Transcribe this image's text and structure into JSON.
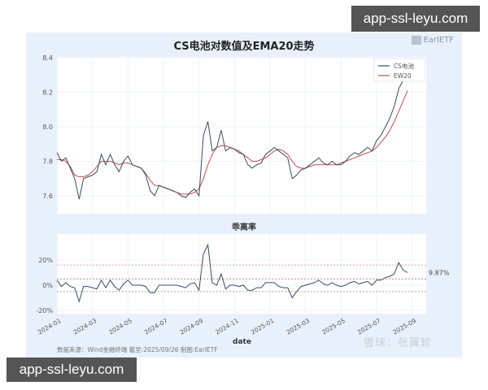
{
  "banners": {
    "top": "app-ssl-leyu.com",
    "bottom": "app-ssl-leyu.com"
  },
  "panel": {
    "logo": "EarlETF",
    "source": "数据来源：Wind金融终端 截至:2025/09/26 制图:EarlETF",
    "watermark": "雪球：张翼轸",
    "xlabel": "date",
    "last_deviation_label": "9.87%"
  },
  "colors": {
    "price": "#3b4a63",
    "ema": "#c0504d",
    "band_upper": "#c9a0a0",
    "band_mid": "#d98080",
    "band_lower": "#9fb39f",
    "panel_bg": "#e8f1fb",
    "plot_bg": "#ffffff",
    "grid": "#eef1f5"
  },
  "chart_data": [
    {
      "type": "line",
      "title": "CS电池对数值及EMA20走势",
      "xlabel": "",
      "ylabel": "",
      "ylim": [
        7.5,
        8.42
      ],
      "yticks": [
        7.6,
        7.8,
        8.0,
        8.2,
        8.4
      ],
      "xticks": [
        "2024-01",
        "2024-03",
        "2024-05",
        "2024-07",
        "2024-09",
        "2024-11",
        "2025-01",
        "2025-03",
        "2025-05",
        "2025-07",
        "2025-09"
      ],
      "grid": true,
      "legend_position": "upper right",
      "x": [
        0,
        0.25,
        0.5,
        0.75,
        1,
        1.25,
        1.5,
        1.75,
        2,
        2.25,
        2.5,
        2.75,
        3,
        3.25,
        3.5,
        3.75,
        4,
        4.25,
        4.5,
        4.75,
        5,
        5.25,
        5.5,
        5.75,
        6,
        6.25,
        6.5,
        6.75,
        7,
        7.25,
        7.5,
        7.75,
        8,
        8.25,
        8.5,
        8.75,
        9,
        9.25,
        9.5,
        9.75,
        10,
        10.25,
        10.5,
        10.75,
        11,
        11.25,
        11.5,
        11.75,
        12,
        12.25,
        12.5,
        12.75,
        13,
        13.25,
        13.5,
        13.75,
        14,
        14.25,
        14.5,
        14.75,
        15,
        15.25,
        15.5,
        15.75,
        16,
        16.25,
        16.5,
        16.75,
        17,
        17.25,
        17.5,
        17.75,
        18,
        18.25,
        18.5,
        18.75,
        19,
        19.25,
        19.5,
        19.75,
        20,
        20.25,
        20.5,
        20.75
      ],
      "series": [
        {
          "name": "CS电池",
          "values": [
            7.85,
            7.8,
            7.82,
            7.76,
            7.7,
            7.58,
            7.7,
            7.71,
            7.72,
            7.74,
            7.84,
            7.78,
            7.84,
            7.78,
            7.74,
            7.8,
            7.83,
            7.78,
            7.77,
            7.76,
            7.72,
            7.63,
            7.6,
            7.66,
            7.65,
            7.64,
            7.63,
            7.62,
            7.6,
            7.59,
            7.62,
            7.64,
            7.6,
            7.95,
            8.03,
            7.86,
            7.88,
            7.98,
            7.86,
            7.88,
            7.87,
            7.85,
            7.84,
            7.78,
            7.76,
            7.78,
            7.79,
            7.84,
            7.86,
            7.88,
            7.86,
            7.84,
            7.82,
            7.7,
            7.72,
            7.75,
            7.76,
            7.78,
            7.8,
            7.82,
            7.79,
            7.78,
            7.8,
            7.78,
            7.78,
            7.8,
            7.83,
            7.85,
            7.84,
            7.86,
            7.88,
            7.86,
            7.92,
            7.95,
            8.0,
            8.05,
            8.12,
            8.22,
            8.27,
            8.33
          ]
        },
        {
          "name": "EW20",
          "values": [
            7.81,
            7.81,
            7.8,
            7.77,
            7.72,
            7.71,
            7.71,
            7.72,
            7.74,
            7.77,
            7.8,
            7.8,
            7.8,
            7.79,
            7.78,
            7.79,
            7.79,
            7.78,
            7.77,
            7.76,
            7.73,
            7.69,
            7.66,
            7.66,
            7.65,
            7.64,
            7.63,
            7.62,
            7.61,
            7.61,
            7.61,
            7.62,
            7.64,
            7.7,
            7.78,
            7.84,
            7.88,
            7.89,
            7.89,
            7.88,
            7.87,
            7.86,
            7.84,
            7.82,
            7.8,
            7.8,
            7.81,
            7.82,
            7.84,
            7.86,
            7.87,
            7.86,
            7.84,
            7.8,
            7.77,
            7.76,
            7.76,
            7.77,
            7.78,
            7.78,
            7.78,
            7.78,
            7.78,
            7.78,
            7.79,
            7.8,
            7.81,
            7.82,
            7.83,
            7.84,
            7.85,
            7.86,
            7.88,
            7.91,
            7.94,
            7.98,
            8.03,
            8.09,
            8.15,
            8.21
          ]
        }
      ]
    },
    {
      "type": "line",
      "title": "乖离率",
      "xlabel": "date",
      "ylabel": "",
      "ylim": [
        -21,
        38
      ],
      "yticks": [
        "-20%",
        "0%",
        "20%"
      ],
      "xticks": [
        "2024-01",
        "2024-03",
        "2024-05",
        "2024-07",
        "2024-09",
        "2024-11",
        "2025-01",
        "2025-03",
        "2025-05",
        "2025-07",
        "2025-09"
      ],
      "reference_lines": [
        16,
        5,
        -5
      ],
      "annotation": "9.87%",
      "grid": true,
      "series": [
        {
          "name": "乖离率",
          "values": [
            4,
            -1,
            2,
            -1,
            -2,
            -13,
            -1,
            -1,
            -2,
            -3,
            4,
            -2,
            4,
            -1,
            -4,
            1,
            4,
            0,
            0,
            0,
            -1,
            -6,
            -6,
            0,
            0,
            0,
            0,
            0,
            -1,
            -2,
            1,
            2,
            -4,
            25,
            32,
            2,
            0,
            9,
            -3,
            0,
            0,
            -1,
            0,
            -4,
            -4,
            -2,
            -2,
            2,
            2,
            2,
            -1,
            -2,
            -2,
            -10,
            -5,
            -1,
            0,
            1,
            2,
            4,
            1,
            0,
            2,
            0,
            -1,
            0,
            2,
            3,
            1,
            2,
            3,
            0,
            4,
            4,
            6,
            7,
            9,
            18,
            12,
            10
          ]
        }
      ]
    }
  ]
}
